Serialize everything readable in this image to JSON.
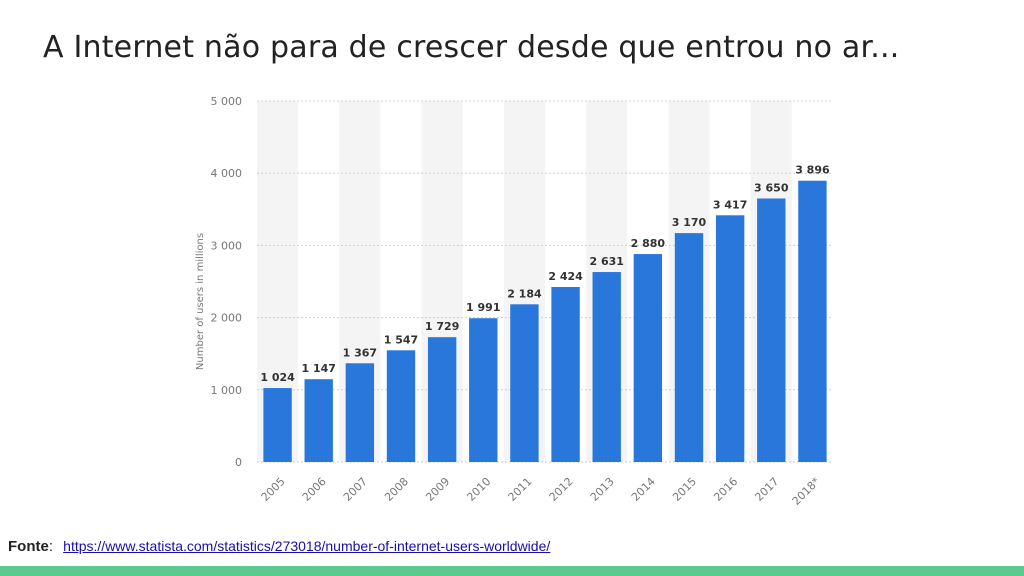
{
  "slide": {
    "title": "A Internet não para de crescer desde que entrou no ar...",
    "source_label": "Fonte",
    "source_colon": ":",
    "source_url": "https://www.statista.com/statistics/273018/number-of-internet-users-worldwide/"
  },
  "colors": {
    "bar": "#2a77dc",
    "band": "#f4f4f4",
    "grid": "#cfcfcf",
    "axis_text": "#777777",
    "label_text": "#333333",
    "bottom_bar": "#5cc98f"
  },
  "chart_data": {
    "type": "bar",
    "categories": [
      "2005",
      "2006",
      "2007",
      "2008",
      "2009",
      "2010",
      "2011",
      "2012",
      "2013",
      "2014",
      "2015",
      "2016",
      "2017",
      "2018*"
    ],
    "values": [
      1024,
      1147,
      1367,
      1547,
      1729,
      1991,
      2184,
      2424,
      2631,
      2880,
      3170,
      3417,
      3650,
      3896
    ],
    "value_labels": [
      "1 024",
      "1 147",
      "1 367",
      "1 547",
      "1 729",
      "1 991",
      "2 184",
      "2 424",
      "2 631",
      "2 880",
      "3 170",
      "3 417",
      "3 650",
      "3 896"
    ],
    "ylabel": "Number of users in millions",
    "xlabel": "",
    "ylim": [
      0,
      5000
    ],
    "yticks": [
      0,
      1000,
      2000,
      3000,
      4000,
      5000
    ],
    "ytick_labels": [
      "0",
      "1 000",
      "2 000",
      "3 000",
      "4 000",
      "5 000"
    ],
    "grid": true,
    "legend": "none"
  }
}
